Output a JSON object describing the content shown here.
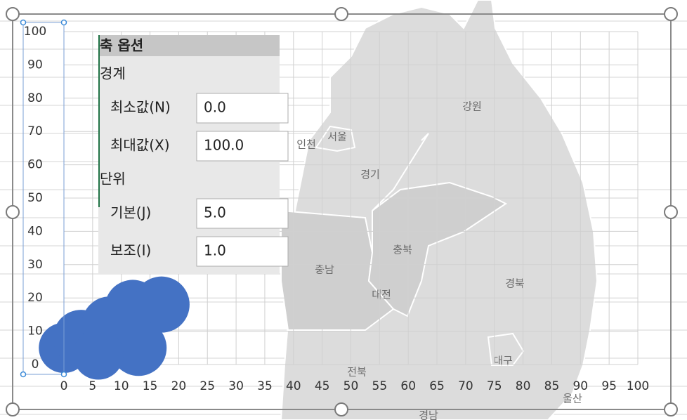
{
  "chart_data": {
    "type": "bubble",
    "xlim": [
      0,
      100
    ],
    "xticks": [
      0,
      5,
      10,
      15,
      20,
      25,
      30,
      35,
      40,
      45,
      50,
      55,
      60,
      65,
      70,
      75,
      80,
      85,
      90,
      95,
      100
    ],
    "ylim": [
      0,
      100
    ],
    "yticks": [
      0,
      10,
      20,
      30,
      40,
      50,
      60,
      70,
      80,
      90,
      100
    ],
    "grid": true,
    "series": [
      {
        "color": "#4472c4",
        "x": [
          0,
          3,
          8,
          12,
          17,
          13,
          6
        ],
        "values": [
          5,
          8,
          12,
          17,
          18,
          5,
          3
        ],
        "sizes": [
          20,
          25,
          25,
          25,
          25,
          25,
          20
        ]
      }
    ]
  },
  "map": {
    "labels": [
      "강원",
      "서울",
      "인천",
      "경기",
      "충북",
      "충남",
      "대전",
      "경북",
      "대구",
      "전북",
      "울산",
      "경남"
    ]
  },
  "panel": {
    "title": "축 옵션",
    "sections": [
      {
        "heading": "경계",
        "fields": [
          {
            "label": "최소값(N)",
            "value": "0.0"
          },
          {
            "label": "최대값(X)",
            "value": "100.0"
          }
        ]
      },
      {
        "heading": "단위",
        "fields": [
          {
            "label": "기본(J)",
            "value": "5.0"
          },
          {
            "label": "보조(I)",
            "value": "1.0"
          }
        ]
      }
    ]
  }
}
